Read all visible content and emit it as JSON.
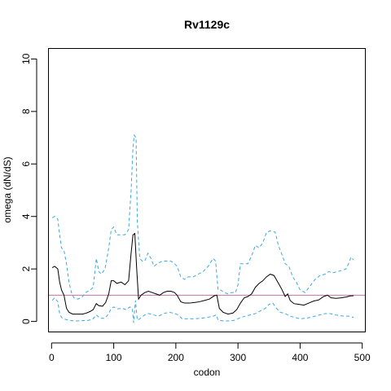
{
  "chart_data": {
    "type": "line",
    "title": "Rv1129c",
    "xlabel": "codon",
    "ylabel": "omega (dN/dS)",
    "xlim": [
      -5,
      505
    ],
    "ylim": [
      -0.4,
      10.4
    ],
    "xticks": [
      0,
      100,
      200,
      300,
      400,
      500
    ],
    "yticks": [
      0,
      2,
      4,
      6,
      8,
      10
    ],
    "grid": false,
    "reference_line": {
      "y": 1,
      "color": "#c86fa8"
    },
    "series": [
      {
        "role": "upper-bound",
        "style": "dashed",
        "color": "#3aa8e0",
        "points": [
          [
            1,
            3.95
          ],
          [
            5,
            4.0
          ],
          [
            10,
            3.9
          ],
          [
            13,
            3.3
          ],
          [
            16,
            2.8
          ],
          [
            20,
            2.7
          ],
          [
            24,
            2.2
          ],
          [
            28,
            1.5
          ],
          [
            32,
            1.1
          ],
          [
            36,
            0.9
          ],
          [
            42,
            0.85
          ],
          [
            48,
            0.9
          ],
          [
            55,
            1.1
          ],
          [
            62,
            1.2
          ],
          [
            67,
            1.3
          ],
          [
            72,
            2.4
          ],
          [
            76,
            1.9
          ],
          [
            80,
            1.8
          ],
          [
            86,
            2.0
          ],
          [
            92,
            2.8
          ],
          [
            96,
            3.5
          ],
          [
            100,
            3.6
          ],
          [
            105,
            3.3
          ],
          [
            112,
            3.3
          ],
          [
            118,
            3.3
          ],
          [
            124,
            3.5
          ],
          [
            128,
            5.0
          ],
          [
            131,
            6.6
          ],
          [
            133,
            7.1
          ],
          [
            136,
            7.0
          ],
          [
            138,
            3.8
          ],
          [
            142,
            2.4
          ],
          [
            146,
            2.3
          ],
          [
            150,
            2.3
          ],
          [
            155,
            2.6
          ],
          [
            160,
            2.4
          ],
          [
            165,
            2.1
          ],
          [
            170,
            2.2
          ],
          [
            178,
            2.3
          ],
          [
            185,
            2.3
          ],
          [
            192,
            2.3
          ],
          [
            198,
            2.2
          ],
          [
            202,
            2.1
          ],
          [
            208,
            1.7
          ],
          [
            214,
            1.6
          ],
          [
            220,
            1.7
          ],
          [
            228,
            1.7
          ],
          [
            236,
            1.8
          ],
          [
            244,
            1.9
          ],
          [
            252,
            2.1
          ],
          [
            260,
            2.4
          ],
          [
            264,
            2.3
          ],
          [
            268,
            1.2
          ],
          [
            272,
            1.2
          ],
          [
            278,
            1.1
          ],
          [
            284,
            1.05
          ],
          [
            290,
            1.1
          ],
          [
            296,
            1.1
          ],
          [
            300,
            1.4
          ],
          [
            304,
            2.2
          ],
          [
            310,
            2.2
          ],
          [
            316,
            2.2
          ],
          [
            322,
            2.5
          ],
          [
            328,
            2.9
          ],
          [
            334,
            2.8
          ],
          [
            340,
            3.0
          ],
          [
            346,
            3.4
          ],
          [
            352,
            3.45
          ],
          [
            360,
            3.4
          ],
          [
            365,
            2.9
          ],
          [
            370,
            2.6
          ],
          [
            376,
            2.2
          ],
          [
            382,
            2.1
          ],
          [
            388,
            1.7
          ],
          [
            394,
            1.5
          ],
          [
            400,
            1.2
          ],
          [
            408,
            1.1
          ],
          [
            416,
            1.35
          ],
          [
            424,
            1.6
          ],
          [
            432,
            1.75
          ],
          [
            440,
            1.8
          ],
          [
            446,
            1.9
          ],
          [
            452,
            1.85
          ],
          [
            460,
            1.9
          ],
          [
            468,
            1.95
          ],
          [
            474,
            2.0
          ],
          [
            478,
            2.2
          ],
          [
            482,
            2.45
          ],
          [
            486,
            2.35
          ]
        ]
      },
      {
        "role": "mean",
        "style": "solid",
        "color": "#000000",
        "points": [
          [
            1,
            2.05
          ],
          [
            5,
            2.1
          ],
          [
            10,
            2.0
          ],
          [
            13,
            1.5
          ],
          [
            16,
            1.2
          ],
          [
            20,
            1.0
          ],
          [
            24,
            0.5
          ],
          [
            28,
            0.35
          ],
          [
            34,
            0.28
          ],
          [
            42,
            0.28
          ],
          [
            50,
            0.28
          ],
          [
            56,
            0.32
          ],
          [
            62,
            0.38
          ],
          [
            67,
            0.45
          ],
          [
            72,
            0.68
          ],
          [
            76,
            0.6
          ],
          [
            82,
            0.58
          ],
          [
            87,
            0.72
          ],
          [
            92,
            1.05
          ],
          [
            96,
            1.55
          ],
          [
            100,
            1.55
          ],
          [
            105,
            1.45
          ],
          [
            112,
            1.5
          ],
          [
            118,
            1.4
          ],
          [
            124,
            1.55
          ],
          [
            128,
            2.6
          ],
          [
            131,
            3.3
          ],
          [
            134,
            3.35
          ],
          [
            137,
            2.0
          ],
          [
            140,
            0.85
          ],
          [
            144,
            1.0
          ],
          [
            150,
            1.1
          ],
          [
            156,
            1.15
          ],
          [
            162,
            1.1
          ],
          [
            168,
            1.05
          ],
          [
            174,
            1.0
          ],
          [
            180,
            1.1
          ],
          [
            186,
            1.15
          ],
          [
            192,
            1.15
          ],
          [
            198,
            1.1
          ],
          [
            202,
            1.0
          ],
          [
            208,
            0.75
          ],
          [
            214,
            0.7
          ],
          [
            222,
            0.7
          ],
          [
            230,
            0.72
          ],
          [
            238,
            0.75
          ],
          [
            246,
            0.8
          ],
          [
            254,
            0.85
          ],
          [
            262,
            0.98
          ],
          [
            266,
            1.0
          ],
          [
            270,
            0.5
          ],
          [
            276,
            0.35
          ],
          [
            284,
            0.28
          ],
          [
            292,
            0.32
          ],
          [
            298,
            0.45
          ],
          [
            304,
            0.7
          ],
          [
            310,
            0.9
          ],
          [
            316,
            0.95
          ],
          [
            322,
            1.05
          ],
          [
            328,
            1.3
          ],
          [
            334,
            1.45
          ],
          [
            340,
            1.55
          ],
          [
            346,
            1.7
          ],
          [
            352,
            1.8
          ],
          [
            358,
            1.75
          ],
          [
            364,
            1.5
          ],
          [
            370,
            1.25
          ],
          [
            376,
            0.95
          ],
          [
            380,
            1.05
          ],
          [
            384,
            0.8
          ],
          [
            390,
            0.68
          ],
          [
            398,
            0.65
          ],
          [
            406,
            0.62
          ],
          [
            414,
            0.7
          ],
          [
            422,
            0.78
          ],
          [
            430,
            0.82
          ],
          [
            438,
            0.95
          ],
          [
            444,
            1.0
          ],
          [
            450,
            0.9
          ],
          [
            458,
            0.88
          ],
          [
            466,
            0.9
          ],
          [
            474,
            0.93
          ],
          [
            480,
            0.97
          ],
          [
            486,
            0.98
          ]
        ]
      },
      {
        "role": "lower-bound",
        "style": "dashed",
        "color": "#3aa8e0",
        "points": [
          [
            1,
            0.8
          ],
          [
            5,
            0.9
          ],
          [
            10,
            0.75
          ],
          [
            13,
            0.3
          ],
          [
            16,
            0.15
          ],
          [
            22,
            0.08
          ],
          [
            30,
            0.03
          ],
          [
            40,
            0.02
          ],
          [
            50,
            0.03
          ],
          [
            58,
            0.04
          ],
          [
            66,
            0.08
          ],
          [
            72,
            0.25
          ],
          [
            78,
            0.12
          ],
          [
            86,
            0.12
          ],
          [
            92,
            0.3
          ],
          [
            96,
            0.5
          ],
          [
            100,
            0.55
          ],
          [
            106,
            0.48
          ],
          [
            114,
            0.5
          ],
          [
            120,
            0.45
          ],
          [
            126,
            0.55
          ],
          [
            130,
            0.5
          ],
          [
            132,
            -0.05
          ],
          [
            135,
            0.8
          ],
          [
            138,
            0.05
          ],
          [
            142,
            0.1
          ],
          [
            150,
            0.25
          ],
          [
            156,
            0.3
          ],
          [
            164,
            0.25
          ],
          [
            172,
            0.2
          ],
          [
            180,
            0.3
          ],
          [
            190,
            0.35
          ],
          [
            198,
            0.3
          ],
          [
            204,
            0.25
          ],
          [
            210,
            0.1
          ],
          [
            220,
            0.1
          ],
          [
            230,
            0.1
          ],
          [
            240,
            0.12
          ],
          [
            250,
            0.15
          ],
          [
            260,
            0.2
          ],
          [
            265,
            0.25
          ],
          [
            268,
            0.05
          ],
          [
            276,
            0.02
          ],
          [
            286,
            0.02
          ],
          [
            296,
            0.05
          ],
          [
            304,
            0.15
          ],
          [
            312,
            0.2
          ],
          [
            320,
            0.25
          ],
          [
            328,
            0.3
          ],
          [
            336,
            0.4
          ],
          [
            344,
            0.5
          ],
          [
            350,
            0.65
          ],
          [
            356,
            0.7
          ],
          [
            362,
            0.5
          ],
          [
            368,
            0.35
          ],
          [
            376,
            0.3
          ],
          [
            384,
            0.2
          ],
          [
            392,
            0.15
          ],
          [
            400,
            0.1
          ],
          [
            408,
            0.12
          ],
          [
            416,
            0.15
          ],
          [
            424,
            0.2
          ],
          [
            432,
            0.25
          ],
          [
            440,
            0.3
          ],
          [
            448,
            0.3
          ],
          [
            456,
            0.25
          ],
          [
            464,
            0.22
          ],
          [
            472,
            0.2
          ],
          [
            480,
            0.2
          ],
          [
            486,
            0.15
          ]
        ]
      }
    ]
  }
}
